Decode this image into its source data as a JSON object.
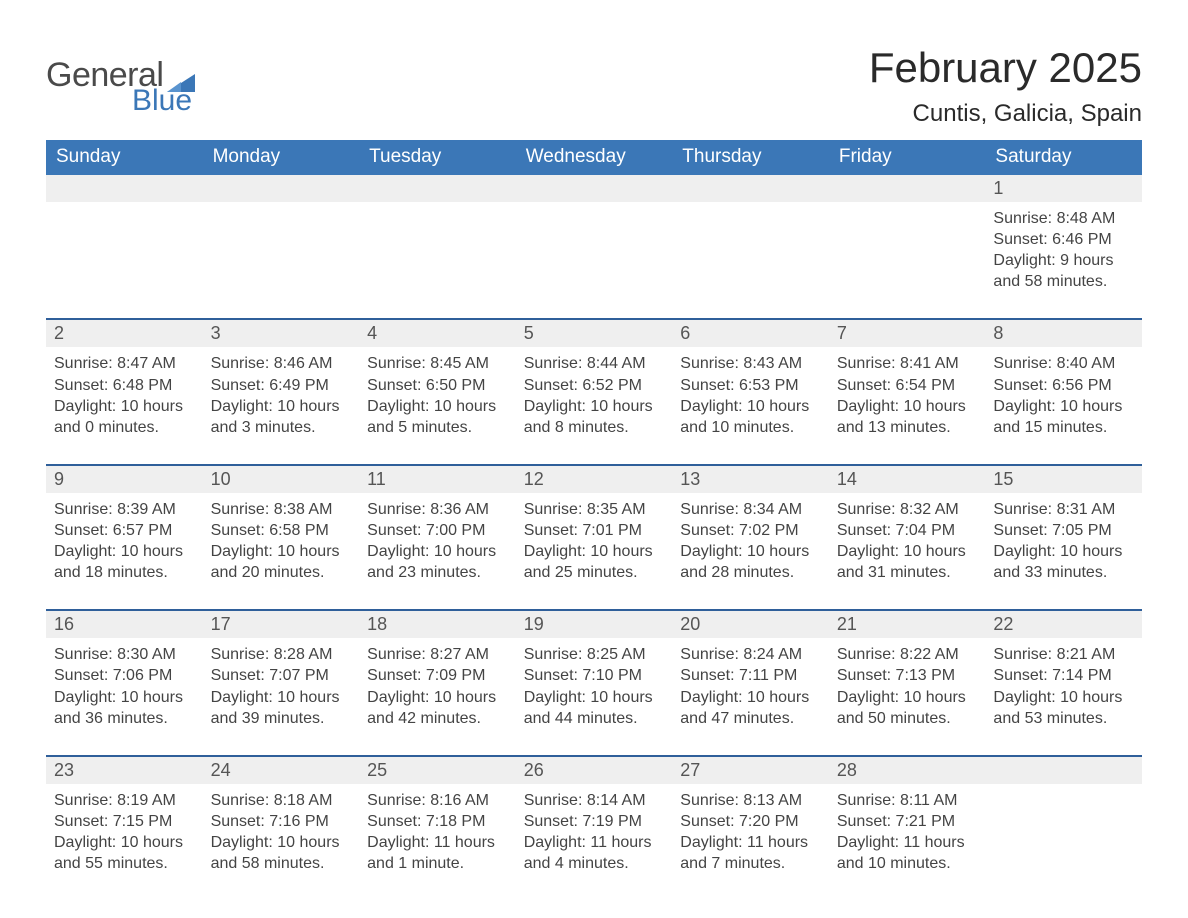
{
  "colors": {
    "header_blue": "#3b77b7",
    "divider_blue": "#2f5f9a",
    "light_gray": "#efefef",
    "text": "#333333",
    "muted": "#444444",
    "background": "#ffffff"
  },
  "logo": {
    "text1": "General",
    "text2": "Blue",
    "triangle_color": "#3b77b7"
  },
  "title": "February 2025",
  "location": "Cuntis, Galicia, Spain",
  "weekdays": [
    "Sunday",
    "Monday",
    "Tuesday",
    "Wednesday",
    "Thursday",
    "Friday",
    "Saturday"
  ],
  "typography": {
    "title_fontsize": 42,
    "location_fontsize": 24,
    "weekday_fontsize": 19,
    "daynum_fontsize": 18,
    "body_fontsize": 16
  },
  "weeks": [
    [
      null,
      null,
      null,
      null,
      null,
      null,
      {
        "n": "1",
        "sunrise": "Sunrise: 8:48 AM",
        "sunset": "Sunset: 6:46 PM",
        "daylight": "Daylight: 9 hours and 58 minutes."
      }
    ],
    [
      {
        "n": "2",
        "sunrise": "Sunrise: 8:47 AM",
        "sunset": "Sunset: 6:48 PM",
        "daylight": "Daylight: 10 hours and 0 minutes."
      },
      {
        "n": "3",
        "sunrise": "Sunrise: 8:46 AM",
        "sunset": "Sunset: 6:49 PM",
        "daylight": "Daylight: 10 hours and 3 minutes."
      },
      {
        "n": "4",
        "sunrise": "Sunrise: 8:45 AM",
        "sunset": "Sunset: 6:50 PM",
        "daylight": "Daylight: 10 hours and 5 minutes."
      },
      {
        "n": "5",
        "sunrise": "Sunrise: 8:44 AM",
        "sunset": "Sunset: 6:52 PM",
        "daylight": "Daylight: 10 hours and 8 minutes."
      },
      {
        "n": "6",
        "sunrise": "Sunrise: 8:43 AM",
        "sunset": "Sunset: 6:53 PM",
        "daylight": "Daylight: 10 hours and 10 minutes."
      },
      {
        "n": "7",
        "sunrise": "Sunrise: 8:41 AM",
        "sunset": "Sunset: 6:54 PM",
        "daylight": "Daylight: 10 hours and 13 minutes."
      },
      {
        "n": "8",
        "sunrise": "Sunrise: 8:40 AM",
        "sunset": "Sunset: 6:56 PM",
        "daylight": "Daylight: 10 hours and 15 minutes."
      }
    ],
    [
      {
        "n": "9",
        "sunrise": "Sunrise: 8:39 AM",
        "sunset": "Sunset: 6:57 PM",
        "daylight": "Daylight: 10 hours and 18 minutes."
      },
      {
        "n": "10",
        "sunrise": "Sunrise: 8:38 AM",
        "sunset": "Sunset: 6:58 PM",
        "daylight": "Daylight: 10 hours and 20 minutes."
      },
      {
        "n": "11",
        "sunrise": "Sunrise: 8:36 AM",
        "sunset": "Sunset: 7:00 PM",
        "daylight": "Daylight: 10 hours and 23 minutes."
      },
      {
        "n": "12",
        "sunrise": "Sunrise: 8:35 AM",
        "sunset": "Sunset: 7:01 PM",
        "daylight": "Daylight: 10 hours and 25 minutes."
      },
      {
        "n": "13",
        "sunrise": "Sunrise: 8:34 AM",
        "sunset": "Sunset: 7:02 PM",
        "daylight": "Daylight: 10 hours and 28 minutes."
      },
      {
        "n": "14",
        "sunrise": "Sunrise: 8:32 AM",
        "sunset": "Sunset: 7:04 PM",
        "daylight": "Daylight: 10 hours and 31 minutes."
      },
      {
        "n": "15",
        "sunrise": "Sunrise: 8:31 AM",
        "sunset": "Sunset: 7:05 PM",
        "daylight": "Daylight: 10 hours and 33 minutes."
      }
    ],
    [
      {
        "n": "16",
        "sunrise": "Sunrise: 8:30 AM",
        "sunset": "Sunset: 7:06 PM",
        "daylight": "Daylight: 10 hours and 36 minutes."
      },
      {
        "n": "17",
        "sunrise": "Sunrise: 8:28 AM",
        "sunset": "Sunset: 7:07 PM",
        "daylight": "Daylight: 10 hours and 39 minutes."
      },
      {
        "n": "18",
        "sunrise": "Sunrise: 8:27 AM",
        "sunset": "Sunset: 7:09 PM",
        "daylight": "Daylight: 10 hours and 42 minutes."
      },
      {
        "n": "19",
        "sunrise": "Sunrise: 8:25 AM",
        "sunset": "Sunset: 7:10 PM",
        "daylight": "Daylight: 10 hours and 44 minutes."
      },
      {
        "n": "20",
        "sunrise": "Sunrise: 8:24 AM",
        "sunset": "Sunset: 7:11 PM",
        "daylight": "Daylight: 10 hours and 47 minutes."
      },
      {
        "n": "21",
        "sunrise": "Sunrise: 8:22 AM",
        "sunset": "Sunset: 7:13 PM",
        "daylight": "Daylight: 10 hours and 50 minutes."
      },
      {
        "n": "22",
        "sunrise": "Sunrise: 8:21 AM",
        "sunset": "Sunset: 7:14 PM",
        "daylight": "Daylight: 10 hours and 53 minutes."
      }
    ],
    [
      {
        "n": "23",
        "sunrise": "Sunrise: 8:19 AM",
        "sunset": "Sunset: 7:15 PM",
        "daylight": "Daylight: 10 hours and 55 minutes."
      },
      {
        "n": "24",
        "sunrise": "Sunrise: 8:18 AM",
        "sunset": "Sunset: 7:16 PM",
        "daylight": "Daylight: 10 hours and 58 minutes."
      },
      {
        "n": "25",
        "sunrise": "Sunrise: 8:16 AM",
        "sunset": "Sunset: 7:18 PM",
        "daylight": "Daylight: 11 hours and 1 minute."
      },
      {
        "n": "26",
        "sunrise": "Sunrise: 8:14 AM",
        "sunset": "Sunset: 7:19 PM",
        "daylight": "Daylight: 11 hours and 4 minutes."
      },
      {
        "n": "27",
        "sunrise": "Sunrise: 8:13 AM",
        "sunset": "Sunset: 7:20 PM",
        "daylight": "Daylight: 11 hours and 7 minutes."
      },
      {
        "n": "28",
        "sunrise": "Sunrise: 8:11 AM",
        "sunset": "Sunset: 7:21 PM",
        "daylight": "Daylight: 11 hours and 10 minutes."
      },
      null
    ]
  ]
}
